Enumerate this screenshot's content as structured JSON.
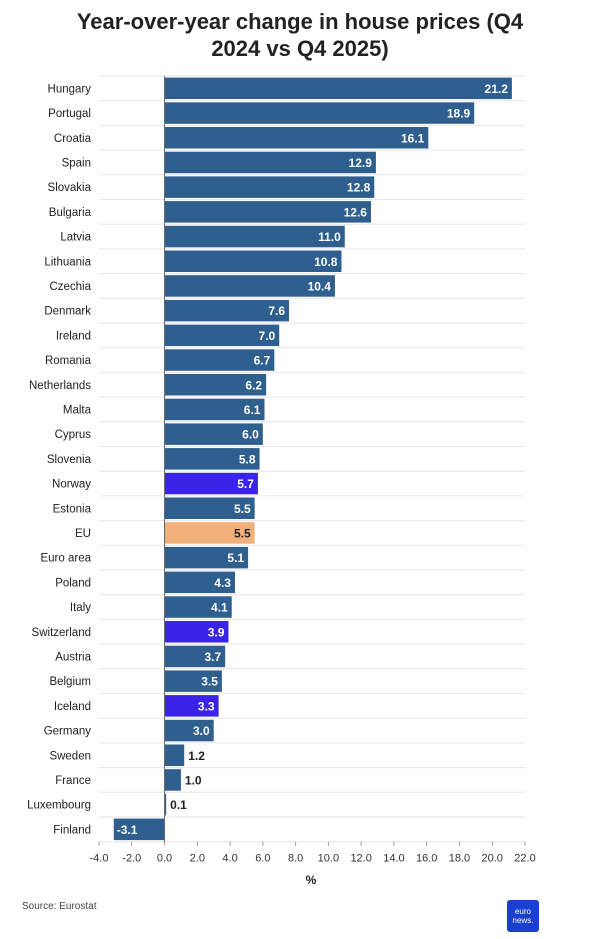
{
  "title_line1": "Year-over-year change in house prices (Q4",
  "title_line2": "2024 vs Q4 2025)",
  "source": "Source: Eurostat",
  "logo_text": "euro news.",
  "colors": {
    "default": "#2e5f8f",
    "highlight": "#3a24e8",
    "eu": "#f2b07a",
    "grid": "#e6e6e6",
    "label_inside": "#ffffff",
    "label_outside": "#222222"
  },
  "chart_data": {
    "type": "bar",
    "orientation": "horizontal",
    "xlabel": "%",
    "xlim": [
      -4.0,
      22.0
    ],
    "xticks": [
      "-4.0",
      "-2.0",
      "0.0",
      "2.0",
      "4.0",
      "6.0",
      "8.0",
      "10.0",
      "12.0",
      "14.0",
      "16.0",
      "18.0",
      "20.0",
      "22.0"
    ],
    "grid": true,
    "categories": [
      "Hungary",
      "Portugal",
      "Croatia",
      "Spain",
      "Slovakia",
      "Bulgaria",
      "Latvia",
      "Lithuania",
      "Czechia",
      "Denmark",
      "Ireland",
      "Romania",
      "Netherlands",
      "Malta",
      "Cyprus",
      "Slovenia",
      "Norway",
      "Estonia",
      "EU",
      "Euro area",
      "Poland",
      "Italy",
      "Switzerland",
      "Austria",
      "Belgium",
      "Iceland",
      "Germany",
      "Sweden",
      "France",
      "Luxembourg",
      "Finland"
    ],
    "values": [
      21.2,
      18.9,
      16.1,
      12.9,
      12.8,
      12.6,
      11.0,
      10.8,
      10.4,
      7.6,
      7.0,
      6.7,
      6.2,
      6.1,
      6.0,
      5.8,
      5.7,
      5.5,
      5.5,
      5.1,
      4.3,
      4.1,
      3.9,
      3.7,
      3.5,
      3.3,
      3.0,
      1.2,
      1.0,
      0.1,
      -3.1
    ],
    "labels": [
      "21.2",
      "18.9",
      "16.1",
      "12.9",
      "12.8",
      "12.6",
      "11.0",
      "10.8",
      "10.4",
      "7.6",
      "7.0",
      "6.7",
      "6.2",
      "6.1",
      "6.0",
      "5.8",
      "5.7",
      "5.5",
      "5.5",
      "5.1",
      "4.3",
      "4.1",
      "3.9",
      "3.7",
      "3.5",
      "3.3",
      "3.0",
      "1.2",
      "1.0",
      "0.1",
      "-3.1"
    ],
    "highlight": [
      "Norway",
      "Switzerland",
      "Iceland"
    ],
    "eu_highlight": [
      "EU"
    ]
  }
}
